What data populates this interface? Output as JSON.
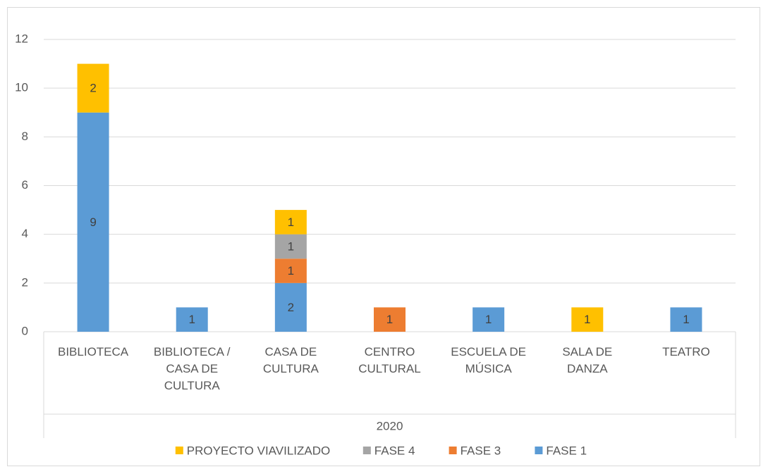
{
  "chart_data": {
    "type": "stacked_bar",
    "categories": [
      "BIBLIOTECA",
      "BIBLIOTECA / CASA DE CULTURA",
      "CASA DE CULTURA",
      "CENTRO CULTURAL",
      "ESCUELA DE MÚSICA",
      "SALA DE DANZA",
      "TEATRO"
    ],
    "group_label": "2020",
    "series": [
      {
        "name": "FASE 1",
        "color": "#5b9bd5",
        "values": [
          9,
          1,
          2,
          null,
          1,
          null,
          1
        ]
      },
      {
        "name": "FASE 3",
        "color": "#ed7d31",
        "values": [
          null,
          null,
          1,
          1,
          null,
          null,
          null
        ]
      },
      {
        "name": "FASE 4",
        "color": "#a5a5a5",
        "values": [
          null,
          null,
          1,
          null,
          null,
          null,
          null
        ]
      },
      {
        "name": "PROYECTO VIAVILIZADO",
        "color": "#ffc000",
        "values": [
          2,
          null,
          1,
          null,
          null,
          1,
          null
        ]
      }
    ],
    "ylim": [
      0,
      12
    ],
    "yticks": [
      0,
      2,
      4,
      6,
      8,
      10,
      12
    ],
    "grid": true,
    "legend": "bottom"
  }
}
